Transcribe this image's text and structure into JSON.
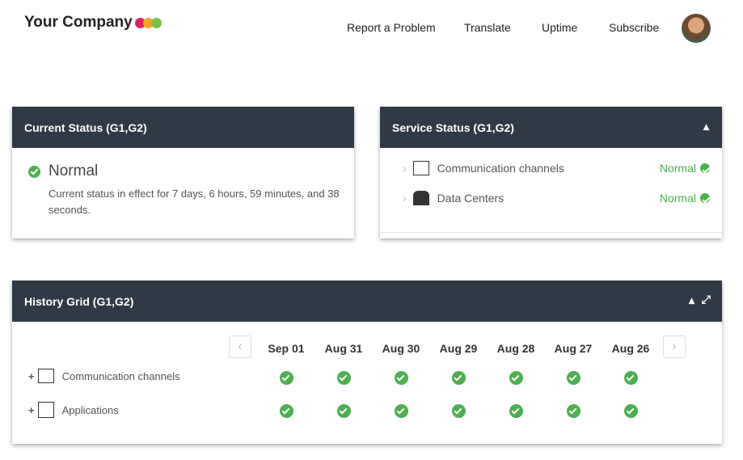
{
  "header": {
    "logo_text": "Your Company",
    "logo_colors": [
      "#e0245e",
      "#f5a623",
      "#7cc142"
    ],
    "nav": [
      "Report a Problem",
      "Translate",
      "Uptime",
      "Subscribe"
    ]
  },
  "current_status": {
    "title": "Current Status (G1,G2)",
    "status": "Normal",
    "detail": "Current status in effect for 7 days, 6 hours, 59 minutes, and 38 seconds."
  },
  "service_status": {
    "title": "Service Status (G1,G2)",
    "items": [
      {
        "name": "Communication channels",
        "icon": "envelope-icon",
        "status": "Normal"
      },
      {
        "name": "Data Centers",
        "icon": "server-cloud-icon",
        "status": "Normal"
      }
    ]
  },
  "history": {
    "title": "History Grid (G1,G2)",
    "dates": [
      "Sep 01",
      "Aug 31",
      "Aug 30",
      "Aug 29",
      "Aug 28",
      "Aug 27",
      "Aug 26"
    ],
    "rows": [
      {
        "name": "Communication channels",
        "icon": "envelope-icon",
        "statuses": [
          "ok",
          "ok",
          "ok",
          "ok",
          "ok",
          "ok",
          "ok"
        ]
      },
      {
        "name": "Applications",
        "icon": "windows-icon",
        "statuses": [
          "ok",
          "ok",
          "ok",
          "ok",
          "ok",
          "ok",
          "ok"
        ]
      }
    ]
  },
  "colors": {
    "header_bg": "#2f3a46",
    "ok": "#4caf50"
  }
}
